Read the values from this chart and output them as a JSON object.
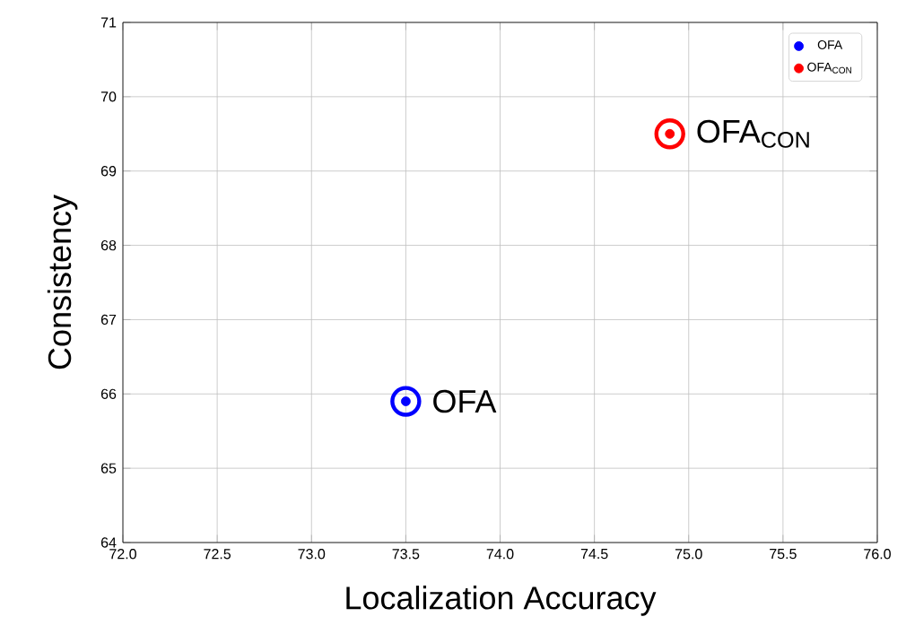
{
  "chart_data": {
    "type": "scatter",
    "xlabel": "Localization Accuracy",
    "ylabel": "Consistency",
    "xlim": [
      72,
      76
    ],
    "xticks": [
      {
        "value": 72,
        "label": "72.0"
      },
      {
        "value": 72.5,
        "label": "72.5"
      },
      {
        "value": 73,
        "label": "73.0"
      },
      {
        "value": 73.5,
        "label": "73.5"
      },
      {
        "value": 74,
        "label": "74.0"
      },
      {
        "value": 74.5,
        "label": "74.5"
      },
      {
        "value": 75,
        "label": "75.0"
      },
      {
        "value": 75.5,
        "label": "75.5"
      },
      {
        "value": 76,
        "label": "76.0"
      }
    ],
    "ylim": [
      64,
      71
    ],
    "yticks": [
      64,
      65,
      66,
      67,
      68,
      69,
      70,
      71
    ],
    "grid": true,
    "legend": "top right",
    "marker": "circle",
    "series": [
      {
        "name": "OFA",
        "color": "#0000ff",
        "x": [
          73.5
        ],
        "values": [
          65.9
        ]
      },
      {
        "name": "OFA$_{CON}$",
        "color": "#ff0000",
        "x": [
          74.9
        ],
        "values": [
          69.5
        ]
      }
    ],
    "annotations": [
      {
        "text": "OFA",
        "x": 73.5,
        "y": 65.9
      },
      {
        "text": "OFA$_{CON}$",
        "x": 74.9,
        "y": 69.5
      }
    ]
  }
}
